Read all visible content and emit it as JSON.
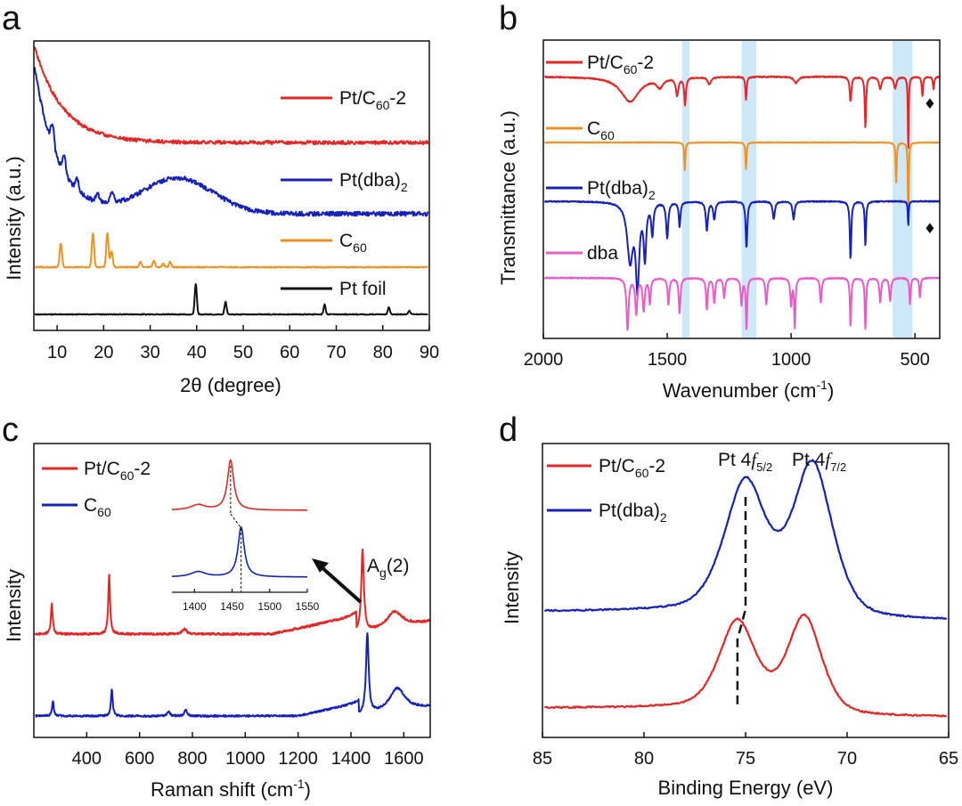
{
  "colors": {
    "red": "#e32626",
    "blue": "#1521b8",
    "orange": "#f0901e",
    "black": "#111111",
    "pink": "#e85cc8",
    "band": "#cfe8f7"
  },
  "panels": {
    "a": {
      "label": "a",
      "xlabel": "2θ (degree)",
      "ylabel": "Intensity (a.u.)",
      "legend": [
        {
          "base": "Pt/C",
          "sub": "60",
          "post": "-2"
        },
        {
          "base": "Pt(dba)",
          "sub": "2",
          "post": ""
        },
        {
          "base": "C",
          "sub": "60",
          "post": ""
        },
        {
          "base": "Pt foil",
          "sub": "",
          "post": ""
        }
      ]
    },
    "b": {
      "label": "b",
      "xlabel": "Wavenumber (cm",
      "xlabel_sup": "-1",
      "xlabel_end": ")",
      "ylabel": "Transmittance (a.u.)",
      "legend": [
        {
          "base": "Pt/C",
          "sub": "60",
          "post": "-2"
        },
        {
          "base": "C",
          "sub": "60",
          "post": ""
        },
        {
          "base": "Pt(dba)",
          "sub": "2",
          "post": ""
        },
        {
          "base": "dba",
          "sub": "",
          "post": ""
        }
      ],
      "marker": "♦"
    },
    "c": {
      "label": "c",
      "xlabel": "Raman shift (cm",
      "xlabel_sup": "-1",
      "xlabel_end": ")",
      "ylabel": "Intensity",
      "legend": [
        {
          "base": "Pt/C",
          "sub": "60",
          "post": "-2"
        },
        {
          "base": "C",
          "sub": "60",
          "post": ""
        }
      ],
      "peak_label": {
        "base": "A",
        "sub": "g",
        "post": "(2)"
      }
    },
    "d": {
      "label": "d",
      "xlabel": "Binding Energy (eV)",
      "ylabel": "Intensity",
      "legend": [
        {
          "base": "Pt/C",
          "sub": "60",
          "post": "-2"
        },
        {
          "base": "Pt(dba)",
          "sub": "2",
          "post": ""
        }
      ],
      "peak1": {
        "base": "Pt 4",
        "it": "f",
        "sub": "5/2"
      },
      "peak2": {
        "base": "Pt 4",
        "it": "f",
        "sub": "7/2"
      }
    }
  },
  "chart_data": [
    {
      "panel": "a",
      "type": "line",
      "title": "",
      "xlabel": "2θ (degree)",
      "ylabel": "Intensity (a.u.)",
      "xlim": [
        5,
        90
      ],
      "xticks": [
        10,
        20,
        30,
        40,
        50,
        60,
        70,
        80,
        90
      ],
      "series": [
        {
          "name": "Pt/C60-2",
          "color": "red",
          "baseline": 160,
          "decay": {
            "amp": 110,
            "tau": 6
          },
          "noise": 2.0,
          "peaks": []
        },
        {
          "name": "Pt(dba)2",
          "color": "blue",
          "baseline": 240,
          "decay": {
            "amp": 170,
            "tau": 5
          },
          "noise": 2.5,
          "peaks": [
            [
              9,
              25,
              0.35
            ],
            [
              11.5,
              20,
              0.35
            ],
            [
              14.3,
              12,
              0.35
            ],
            [
              18.7,
              10,
              0.35
            ],
            [
              21.8,
              14,
              0.35
            ],
            [
              36,
              40,
              7.5
            ]
          ]
        },
        {
          "name": "C60",
          "color": "orange",
          "baseline": 300,
          "decay": null,
          "noise": 0.6,
          "peaks": [
            [
              10.8,
              27,
              0.25
            ],
            [
              17.7,
              38,
              0.25
            ],
            [
              20.8,
              38,
              0.25
            ],
            [
              21.7,
              18,
              0.25
            ],
            [
              27.9,
              6,
              0.25
            ],
            [
              30.8,
              7,
              0.25
            ],
            [
              32.8,
              4,
              0.25
            ],
            [
              34.3,
              6,
              0.25
            ]
          ]
        },
        {
          "name": "Pt foil",
          "color": "black",
          "baseline": 353,
          "decay": null,
          "noise": 0.5,
          "peaks": [
            [
              39.8,
              35,
              0.22
            ],
            [
              46.2,
              14,
              0.22
            ],
            [
              67.5,
              11,
              0.22
            ],
            [
              81.3,
              8,
              0.22
            ],
            [
              85.7,
              4,
              0.22
            ]
          ]
        }
      ]
    },
    {
      "panel": "b",
      "type": "line",
      "title": "",
      "xlabel": "Wavenumber (cm-1)",
      "ylabel": "Transmittance (a.u.)",
      "xlim": [
        2000,
        400
      ],
      "xticks": [
        2000,
        1500,
        1000,
        500
      ],
      "bands": [
        [
          1440,
          1410
        ],
        [
          1200,
          1140
        ],
        [
          590,
          510
        ]
      ],
      "series": [
        {
          "name": "Pt/C60-2",
          "color": "red",
          "baseline": 86,
          "noise": 0.6,
          "dips": [
            [
              1650,
              28,
              45
            ],
            [
              1530,
              10,
              15
            ],
            [
              1460,
              20,
              6
            ],
            [
              1428,
              30,
              4
            ],
            [
              1330,
              8,
              8
            ],
            [
              1182,
              26,
              3
            ],
            [
              980,
              7,
              10
            ],
            [
              760,
              28,
              4
            ],
            [
              700,
              58,
              3
            ],
            [
              640,
              14,
              6
            ],
            [
              580,
              13,
              6
            ],
            [
              527,
              85,
              2
            ],
            [
              470,
              22,
              3
            ],
            [
              425,
              14,
              3
            ]
          ]
        },
        {
          "name": "C60",
          "color": "orange",
          "baseline": 160,
          "noise": 0.3,
          "dips": [
            [
              1429,
              32,
              2.5
            ],
            [
              1182,
              30,
              2.5
            ],
            [
              576,
              45,
              2.5
            ],
            [
              527,
              92,
              2
            ]
          ]
        },
        {
          "name": "Pt(dba)2",
          "color": "blue",
          "baseline": 226,
          "noise": 0.6,
          "dips": [
            [
              1650,
              65,
              14
            ],
            [
              1620,
              92,
              8
            ],
            [
              1590,
              60,
              6
            ],
            [
              1560,
              35,
              5
            ],
            [
              1500,
              40,
              5
            ],
            [
              1450,
              28,
              4
            ],
            [
              1340,
              32,
              5
            ],
            [
              1310,
              20,
              5
            ],
            [
              1180,
              52,
              4
            ],
            [
              1070,
              20,
              5
            ],
            [
              990,
              20,
              5
            ],
            [
              760,
              65,
              3.5
            ],
            [
              700,
              50,
              3
            ],
            [
              527,
              28,
              2
            ]
          ]
        },
        {
          "name": "dba",
          "color": "pink",
          "baseline": 312,
          "noise": 0.6,
          "dips": [
            [
              1660,
              58,
              5
            ],
            [
              1625,
              40,
              5
            ],
            [
              1595,
              36,
              5
            ],
            [
              1570,
              28,
              4
            ],
            [
              1495,
              30,
              4
            ],
            [
              1450,
              40,
              4
            ],
            [
              1340,
              35,
              4
            ],
            [
              1310,
              28,
              4
            ],
            [
              1270,
              22,
              4
            ],
            [
              1200,
              30,
              4
            ],
            [
              1180,
              58,
              3
            ],
            [
              1100,
              30,
              4
            ],
            [
              1000,
              30,
              4
            ],
            [
              985,
              56,
              3
            ],
            [
              880,
              28,
              4
            ],
            [
              760,
              55,
              3
            ],
            [
              700,
              58,
              3
            ],
            [
              640,
              28,
              4
            ],
            [
              600,
              26,
              4
            ],
            [
              520,
              30,
              3
            ],
            [
              480,
              22,
              3
            ]
          ]
        }
      ],
      "markers": [
        {
          "series": "Pt/C60-2",
          "x": 440
        },
        {
          "series": "Pt(dba)2",
          "x": 440
        }
      ]
    },
    {
      "panel": "c",
      "type": "line",
      "title": "",
      "xlabel": "Raman shift (cm-1)",
      "ylabel": "Intensity",
      "xlim": [
        200,
        1700
      ],
      "xticks": [
        400,
        600,
        800,
        1000,
        1200,
        1400,
        1600
      ],
      "series": [
        {
          "name": "Pt/C60-2",
          "color": "red",
          "baseline": 712,
          "noise": 1.2,
          "rise": [
            [
              1100,
              1420,
              20
            ],
            [
              1420,
              1700,
              14
            ]
          ],
          "peaks": [
            [
              268,
              34,
              4
            ],
            [
              485,
              68,
              4
            ],
            [
              770,
              6,
              10
            ],
            [
              1444,
              92,
              6
            ],
            [
              1565,
              18,
              35
            ]
          ]
        },
        {
          "name": "C60",
          "color": "blue",
          "baseline": 804,
          "noise": 1.0,
          "rise": [
            [
              1200,
              1430,
              14
            ],
            [
              1430,
              1700,
              10
            ]
          ],
          "peaks": [
            [
              272,
              16,
              4
            ],
            [
              495,
              30,
              4
            ],
            [
              710,
              5,
              6
            ],
            [
              775,
              7,
              6
            ],
            [
              1462,
              90,
              6
            ],
            [
              1575,
              26,
              35
            ]
          ]
        }
      ],
      "inset": {
        "xlim": [
          1370,
          1550
        ],
        "xticks": [
          1400,
          1450,
          1500,
          1550
        ],
        "series": [
          {
            "name": "Pt/C60-2",
            "color": "red",
            "peaks": [
              [
                1448,
                56,
                5
              ],
              [
                1405,
                6,
                12
              ]
            ]
          },
          {
            "name": "C60",
            "color": "blue",
            "peaks": [
              [
                1462,
                56,
                5
              ],
              [
                1405,
                6,
                12
              ]
            ]
          }
        ]
      }
    },
    {
      "panel": "d",
      "type": "line",
      "title": "",
      "xlabel": "Binding Energy (eV)",
      "ylabel": "Intensity",
      "xlim": [
        85,
        65
      ],
      "xticks": [
        85,
        80,
        75,
        70,
        65
      ],
      "series": [
        {
          "name": "Pt(dba)2",
          "color": "blue",
          "baseline": 697,
          "noise": 0.8,
          "peaks": [
            [
              75.0,
              145,
              1.1
            ],
            [
              71.7,
              170,
              1.05
            ]
          ]
        },
        {
          "name": "Pt/C60-2",
          "color": "red",
          "baseline": 805,
          "noise": 0.8,
          "peaks": [
            [
              75.4,
              98,
              0.95
            ],
            [
              72.1,
              108,
              0.9
            ]
          ]
        }
      ]
    }
  ]
}
